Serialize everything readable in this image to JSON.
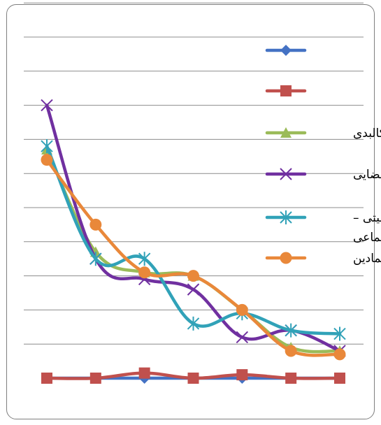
{
  "chart_data": {
    "type": "line",
    "title": "",
    "xlabel": "",
    "ylabel": "",
    "x": [
      1,
      2,
      3,
      4,
      5,
      6,
      7
    ],
    "ylim": [
      0,
      10
    ],
    "grid": true,
    "legend_position": "right",
    "series": [
      {
        "name": "",
        "color": "#4472c4",
        "marker": "diamond",
        "values": [
          0,
          0,
          0,
          0,
          0,
          0,
          0
        ]
      },
      {
        "name": "",
        "color": "#c0504d",
        "marker": "square",
        "values": [
          0,
          0,
          0.15,
          0,
          0.1,
          0,
          0
        ]
      },
      {
        "name": "کالبدی",
        "color": "#9bbb59",
        "marker": "triangle",
        "values": [
          6.7,
          3.7,
          3.1,
          3.0,
          2.0,
          0.9,
          0.8
        ]
      },
      {
        "name": "فضایی",
        "color": "#7030a0",
        "marker": "x",
        "values": [
          8.0,
          3.5,
          2.9,
          2.6,
          1.2,
          1.4,
          0.8
        ]
      },
      {
        "name": "فعالیتی – اجتماعی",
        "color": "#31a2b8",
        "marker": "star",
        "values": [
          6.8,
          3.5,
          3.5,
          1.6,
          1.9,
          1.4,
          1.3
        ]
      },
      {
        "name": "نمادین",
        "color": "#e9883a",
        "marker": "circle",
        "values": [
          6.4,
          4.5,
          3.1,
          3.0,
          2.0,
          0.8,
          0.7
        ]
      }
    ]
  }
}
